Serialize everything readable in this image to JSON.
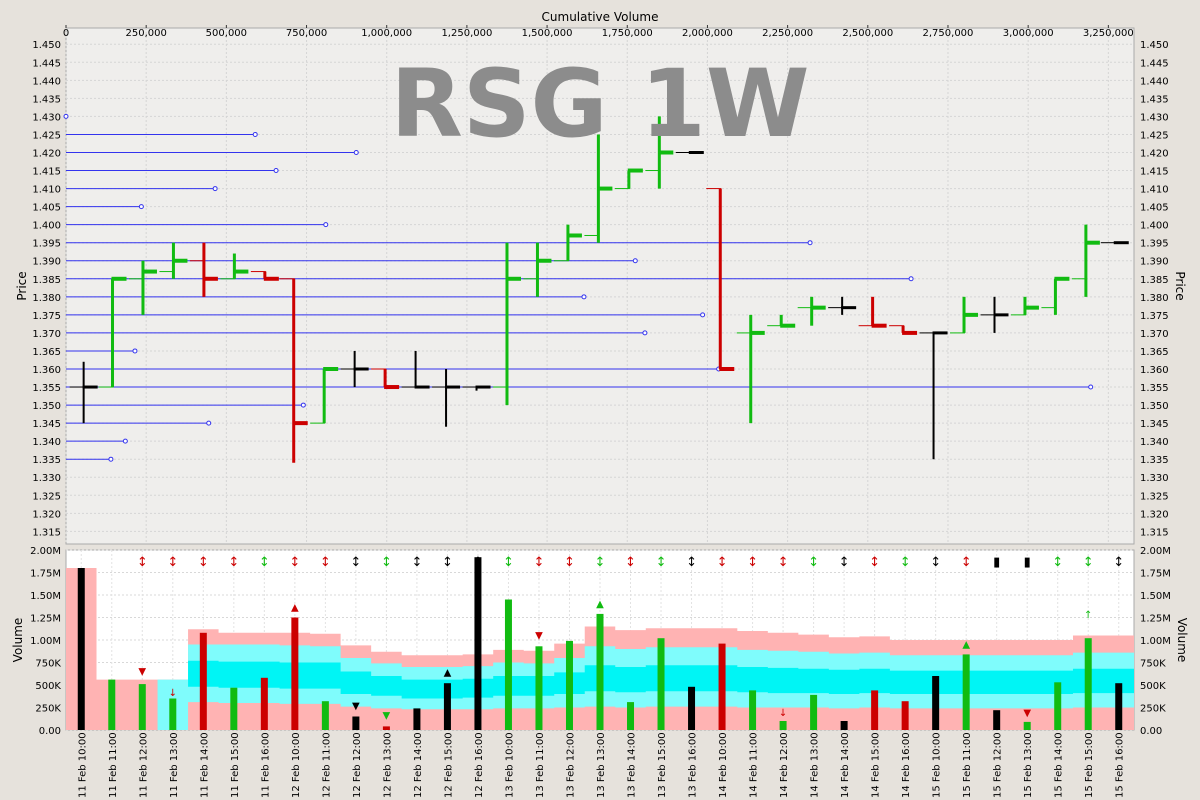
{
  "chart_data": {
    "type": "bar",
    "title": "RSG 1W",
    "x_axis_top": {
      "label": "Cumulative Volume",
      "range": [
        0,
        3330000
      ],
      "ticks": [
        0,
        250000,
        500000,
        750000,
        1000000,
        1250000,
        1500000,
        1750000,
        2000000,
        2250000,
        2500000,
        2750000,
        3000000,
        3250000
      ],
      "tick_labels": [
        "0",
        "250,000",
        "500,000",
        "750,000",
        "1,000,000",
        "1,250,000",
        "1,500,000",
        "1,750,000",
        "2,000,000",
        "2,250,000",
        "2,500,000",
        "2,750,000",
        "3,000,000",
        "3,250,000"
      ]
    },
    "price_axis": {
      "label": "Price",
      "range": [
        1.3115,
        1.4545
      ],
      "ticks": [
        1.315,
        1.32,
        1.325,
        1.33,
        1.335,
        1.34,
        1.345,
        1.35,
        1.355,
        1.36,
        1.365,
        1.37,
        1.375,
        1.38,
        1.385,
        1.39,
        1.395,
        1.4,
        1.405,
        1.41,
        1.415,
        1.42,
        1.425,
        1.43,
        1.435,
        1.44,
        1.445,
        1.45
      ],
      "tick_labels": [
        "1.315",
        "1.320",
        "1.325",
        "1.330",
        "1.335",
        "1.340",
        "1.345",
        "1.350",
        "1.355",
        "1.360",
        "1.365",
        "1.370",
        "1.375",
        "1.380",
        "1.385",
        "1.390",
        "1.395",
        "1.400",
        "1.405",
        "1.410",
        "1.415",
        "1.420",
        "1.425",
        "1.430",
        "1.435",
        "1.440",
        "1.445",
        "1.450"
      ]
    },
    "volume_axis": {
      "label": "Volume",
      "range": [
        0,
        2000000
      ],
      "ticks": [
        0,
        250000,
        500000,
        750000,
        1000000,
        1250000,
        1500000,
        1750000,
        2000000
      ],
      "tick_labels": [
        "0.00",
        "250K",
        "500K",
        "750K",
        "1.00M",
        "1.25M",
        "1.50M",
        "1.75M",
        "2.00M"
      ]
    },
    "categories": [
      "11 Feb 10:00",
      "11 Feb 11:00",
      "11 Feb 12:00",
      "11 Feb 13:00",
      "11 Feb 14:00",
      "11 Feb 15:00",
      "11 Feb 16:00",
      "12 Feb 10:00",
      "12 Feb 11:00",
      "12 Feb 12:00",
      "12 Feb 13:00",
      "12 Feb 14:00",
      "12 Feb 15:00",
      "12 Feb 16:00",
      "13 Feb 10:00",
      "13 Feb 11:00",
      "13 Feb 12:00",
      "13 Feb 13:00",
      "13 Feb 14:00",
      "13 Feb 15:00",
      "13 Feb 16:00",
      "14 Feb 10:00",
      "14 Feb 11:00",
      "14 Feb 12:00",
      "14 Feb 13:00",
      "14 Feb 14:00",
      "14 Feb 15:00",
      "14 Feb 16:00",
      "15 Feb 10:00",
      "15 Feb 11:00",
      "15 Feb 12:00",
      "15 Feb 13:00",
      "15 Feb 14:00",
      "15 Feb 15:00",
      "15 Feb 16:00"
    ],
    "volume": [
      1800000,
      560000,
      510000,
      350000,
      1080000,
      470000,
      580000,
      1250000,
      320000,
      150000,
      40000,
      240000,
      520000,
      1920000,
      1450000,
      930000,
      990000,
      1290000,
      310000,
      1020000,
      480000,
      960000,
      440000,
      100000,
      390000,
      100000,
      440000,
      320000,
      600000,
      840000,
      220000,
      90000,
      530000,
      1020000,
      520000
    ],
    "price_bars": [
      {
        "cumvol": 55000,
        "open": 1.355,
        "high": 1.362,
        "low": 1.345,
        "close": 1.355,
        "color": "black"
      },
      {
        "cumvol": 145000,
        "open": 1.355,
        "high": 1.385,
        "low": 1.355,
        "close": 1.385,
        "color": "green"
      },
      {
        "cumvol": 240000,
        "open": 1.385,
        "high": 1.39,
        "low": 1.375,
        "close": 1.387,
        "color": "green"
      },
      {
        "cumvol": 335000,
        "open": 1.387,
        "high": 1.395,
        "low": 1.385,
        "close": 1.39,
        "color": "green"
      },
      {
        "cumvol": 430000,
        "open": 1.39,
        "high": 1.395,
        "low": 1.38,
        "close": 1.385,
        "color": "red"
      },
      {
        "cumvol": 525000,
        "open": 1.385,
        "high": 1.392,
        "low": 1.385,
        "close": 1.387,
        "color": "green"
      },
      {
        "cumvol": 620000,
        "open": 1.387,
        "high": 1.387,
        "low": 1.385,
        "close": 1.385,
        "color": "red"
      },
      {
        "cumvol": 710000,
        "open": 1.385,
        "high": 1.385,
        "low": 1.334,
        "close": 1.345,
        "color": "red"
      },
      {
        "cumvol": 805000,
        "open": 1.345,
        "high": 1.36,
        "low": 1.345,
        "close": 1.36,
        "color": "green"
      },
      {
        "cumvol": 900000,
        "open": 1.36,
        "high": 1.365,
        "low": 1.355,
        "close": 1.36,
        "color": "black"
      },
      {
        "cumvol": 995000,
        "open": 1.36,
        "high": 1.36,
        "low": 1.355,
        "close": 1.355,
        "color": "red"
      },
      {
        "cumvol": 1090000,
        "open": 1.355,
        "high": 1.365,
        "low": 1.355,
        "close": 1.355,
        "color": "black"
      },
      {
        "cumvol": 1185000,
        "open": 1.355,
        "high": 1.36,
        "low": 1.344,
        "close": 1.355,
        "color": "black"
      },
      {
        "cumvol": 1280000,
        "open": 1.355,
        "high": 1.355,
        "low": 1.354,
        "close": 1.355,
        "color": "black"
      },
      {
        "cumvol": 1375000,
        "open": 1.355,
        "high": 1.395,
        "low": 1.35,
        "close": 1.385,
        "color": "green"
      },
      {
        "cumvol": 1470000,
        "open": 1.385,
        "high": 1.395,
        "low": 1.38,
        "close": 1.39,
        "color": "green"
      },
      {
        "cumvol": 1565000,
        "open": 1.39,
        "high": 1.4,
        "low": 1.39,
        "close": 1.397,
        "color": "green"
      },
      {
        "cumvol": 1660000,
        "open": 1.397,
        "high": 1.425,
        "low": 1.395,
        "close": 1.41,
        "color": "green"
      },
      {
        "cumvol": 1755000,
        "open": 1.41,
        "high": 1.415,
        "low": 1.41,
        "close": 1.415,
        "color": "green"
      },
      {
        "cumvol": 1850000,
        "open": 1.415,
        "high": 1.43,
        "low": 1.41,
        "close": 1.42,
        "color": "green"
      },
      {
        "cumvol": 1945000,
        "open": 1.42,
        "high": 1.42,
        "low": 1.42,
        "close": 1.42,
        "color": "black"
      },
      {
        "cumvol": 2040000,
        "open": 1.41,
        "high": 1.41,
        "low": 1.36,
        "close": 1.36,
        "color": "red"
      },
      {
        "cumvol": 2135000,
        "open": 1.37,
        "high": 1.375,
        "low": 1.345,
        "close": 1.37,
        "color": "green"
      },
      {
        "cumvol": 2230000,
        "open": 1.372,
        "high": 1.375,
        "low": 1.372,
        "close": 1.372,
        "color": "green"
      },
      {
        "cumvol": 2325000,
        "open": 1.377,
        "high": 1.38,
        "low": 1.372,
        "close": 1.377,
        "color": "green"
      },
      {
        "cumvol": 2420000,
        "open": 1.377,
        "high": 1.38,
        "low": 1.375,
        "close": 1.377,
        "color": "black"
      },
      {
        "cumvol": 2515000,
        "open": 1.372,
        "high": 1.38,
        "low": 1.372,
        "close": 1.372,
        "color": "red"
      },
      {
        "cumvol": 2610000,
        "open": 1.372,
        "high": 1.372,
        "low": 1.37,
        "close": 1.37,
        "color": "red"
      },
      {
        "cumvol": 2705000,
        "open": 1.37,
        "high": 1.37,
        "low": 1.335,
        "close": 1.37,
        "color": "black"
      },
      {
        "cumvol": 2800000,
        "open": 1.37,
        "high": 1.38,
        "low": 1.37,
        "close": 1.375,
        "color": "green"
      },
      {
        "cumvol": 2895000,
        "open": 1.375,
        "high": 1.38,
        "low": 1.37,
        "close": 1.375,
        "color": "black"
      },
      {
        "cumvol": 2990000,
        "open": 1.375,
        "high": 1.38,
        "low": 1.375,
        "close": 1.377,
        "color": "green"
      },
      {
        "cumvol": 3085000,
        "open": 1.377,
        "high": 1.385,
        "low": 1.375,
        "close": 1.385,
        "color": "green"
      },
      {
        "cumvol": 3180000,
        "open": 1.385,
        "high": 1.4,
        "low": 1.38,
        "close": 1.395,
        "color": "green"
      },
      {
        "cumvol": 3270000,
        "open": 1.395,
        "high": 1.395,
        "low": 1.395,
        "close": 1.395,
        "color": "black"
      }
    ],
    "volume_at_price": [
      {
        "price": 1.43,
        "volume": 0
      },
      {
        "price": 1.425,
        "volume": 590000
      },
      {
        "price": 1.42,
        "volume": 905000
      },
      {
        "price": 1.415,
        "volume": 655000
      },
      {
        "price": 1.41,
        "volume": 465000
      },
      {
        "price": 1.405,
        "volume": 235000
      },
      {
        "price": 1.4,
        "volume": 810000
      },
      {
        "price": 1.395,
        "volume": 2320000
      },
      {
        "price": 1.39,
        "volume": 1775000
      },
      {
        "price": 1.385,
        "volume": 2635000
      },
      {
        "price": 1.38,
        "volume": 1615000
      },
      {
        "price": 1.375,
        "volume": 1985000
      },
      {
        "price": 1.37,
        "volume": 1805000
      },
      {
        "price": 1.365,
        "volume": 215000
      },
      {
        "price": 1.36,
        "volume": 2035000
      },
      {
        "price": 1.355,
        "volume": 3195000
      },
      {
        "price": 1.35,
        "volume": 740000
      },
      {
        "price": 1.345,
        "volume": 445000
      },
      {
        "price": 1.34,
        "volume": 185000
      },
      {
        "price": 1.335,
        "volume": 140000
      }
    ],
    "volume_bands": {
      "pink_top": [
        1800000,
        560000,
        560000,
        560000,
        1120000,
        1080000,
        1080000,
        1080000,
        1070000,
        940000,
        870000,
        830000,
        830000,
        840000,
        890000,
        880000,
        960000,
        1150000,
        1110000,
        1130000,
        1130000,
        1130000,
        1100000,
        1080000,
        1060000,
        1030000,
        1040000,
        1000000,
        1000000,
        1000000,
        1000000,
        1000000,
        1000000,
        1050000,
        1050000
      ],
      "cyan_outer_top": [
        0,
        0,
        0,
        560000,
        950000,
        950000,
        950000,
        940000,
        930000,
        800000,
        740000,
        700000,
        700000,
        710000,
        750000,
        740000,
        800000,
        930000,
        900000,
        920000,
        920000,
        920000,
        890000,
        880000,
        870000,
        850000,
        860000,
        830000,
        830000,
        830000,
        830000,
        830000,
        830000,
        860000,
        860000
      ],
      "cyan_inner_top": [
        0,
        0,
        0,
        0,
        770000,
        760000,
        760000,
        750000,
        750000,
        650000,
        600000,
        560000,
        560000,
        570000,
        600000,
        600000,
        640000,
        720000,
        700000,
        720000,
        720000,
        720000,
        700000,
        690000,
        680000,
        670000,
        680000,
        660000,
        660000,
        660000,
        660000,
        660000,
        660000,
        680000,
        680000
      ],
      "cyan_inner_bottom": [
        0,
        0,
        0,
        0,
        480000,
        470000,
        470000,
        460000,
        460000,
        400000,
        380000,
        350000,
        350000,
        360000,
        380000,
        380000,
        400000,
        430000,
        420000,
        430000,
        430000,
        430000,
        420000,
        410000,
        410000,
        400000,
        410000,
        400000,
        400000,
        400000,
        400000,
        400000,
        400000,
        410000,
        410000
      ],
      "cyan_outer_bottom": [
        0,
        0,
        0,
        0,
        310000,
        300000,
        300000,
        290000,
        290000,
        260000,
        240000,
        230000,
        230000,
        230000,
        240000,
        240000,
        250000,
        260000,
        250000,
        260000,
        260000,
        260000,
        250000,
        250000,
        250000,
        240000,
        250000,
        240000,
        240000,
        240000,
        240000,
        240000,
        240000,
        250000,
        250000
      ]
    },
    "volume_signals": [
      {
        "index": 2,
        "symbol": "▼",
        "color": "red",
        "volume": 660000
      },
      {
        "index": 3,
        "symbol": "↓",
        "color": "red",
        "volume": 420000
      },
      {
        "index": 7,
        "symbol": "▲",
        "color": "red",
        "volume": 1370000
      },
      {
        "index": 9,
        "symbol": "▼",
        "color": "black",
        "volume": 280000
      },
      {
        "index": 10,
        "symbol": "▼",
        "color": "green",
        "volume": 170000
      },
      {
        "index": 12,
        "symbol": "▲",
        "color": "black",
        "volume": 650000
      },
      {
        "index": 15,
        "symbol": "▼",
        "color": "red",
        "volume": 1060000
      },
      {
        "index": 17,
        "symbol": "▲",
        "color": "green",
        "volume": 1410000
      },
      {
        "index": 23,
        "symbol": "↓",
        "color": "red",
        "volume": 200000
      },
      {
        "index": 29,
        "symbol": "▲",
        "color": "green",
        "volume": 960000
      },
      {
        "index": 31,
        "symbol": "▼",
        "color": "red",
        "volume": 200000
      },
      {
        "index": 33,
        "symbol": "↑",
        "color": "green",
        "volume": 1290000
      }
    ],
    "top_signals": [
      "",
      "",
      "↕red",
      "↕red",
      "↕red",
      "↕red",
      "↕green",
      "↕red",
      "↕red",
      "↕black",
      "↕green",
      "↕black",
      "↕black",
      "↕black",
      "↕green",
      "↕red",
      "↕red",
      "↕green",
      "↕red",
      "↕green",
      "↕black",
      "↕red",
      "↕red",
      "↕red",
      "↕green",
      "↕black",
      "↕red",
      "↕green",
      "↕black",
      "↕red",
      "▮black",
      "▮black",
      "↕green",
      "↕green",
      "↕black"
    ],
    "colors": {
      "green": "#11bb11",
      "red": "#cc0000",
      "black": "#000000",
      "blue": "#3333ee",
      "pink": "#ffb3b3",
      "cyan_light": "#7ffcfc",
      "cyan": "#00f5f5",
      "watermark": "#8c8c8c"
    }
  }
}
